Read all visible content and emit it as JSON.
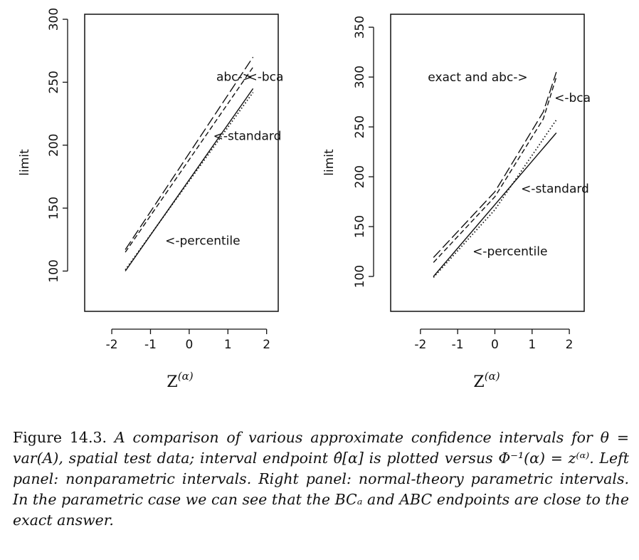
{
  "chart_data": [
    {
      "type": "line",
      "panel": "left",
      "xlabel": "Z",
      "xlabel_superscript": "(α)",
      "ylabel": "limit",
      "xlim": [
        -2.7,
        2.3
      ],
      "ylim": [
        68,
        304
      ],
      "xticks": [
        -2,
        -1,
        0,
        1,
        2
      ],
      "yticks": [
        100,
        150,
        200,
        250,
        300
      ],
      "series": [
        {
          "key": "abc",
          "style": "longdash",
          "x": [
            -1.65,
            1.65
          ],
          "y": [
            117,
            270
          ]
        },
        {
          "key": "bca",
          "style": "shortdash",
          "x": [
            -1.65,
            1.65
          ],
          "y": [
            115,
            262
          ]
        },
        {
          "key": "standard",
          "style": "solid",
          "x": [
            -1.65,
            1.65
          ],
          "y": [
            100,
            245
          ]
        },
        {
          "key": "percentile",
          "style": "dotted",
          "x": [
            -1.65,
            1.65
          ],
          "y": [
            101,
            242
          ]
        }
      ],
      "annotations": [
        {
          "text": "abc->",
          "x": 0.7,
          "y": 251
        },
        {
          "text": "<-bca",
          "x": 1.5,
          "y": 251
        },
        {
          "text": "<-standard",
          "x": 0.62,
          "y": 204
        },
        {
          "text": "<-percentile",
          "x": -0.62,
          "y": 121
        }
      ]
    },
    {
      "type": "line",
      "panel": "right",
      "xlabel": "Z",
      "xlabel_superscript": "(α)",
      "ylabel": "limit",
      "xlim": [
        -2.8,
        2.4
      ],
      "ylim": [
        65,
        363
      ],
      "xticks": [
        -2,
        -1,
        0,
        1,
        2
      ],
      "yticks": [
        100,
        150,
        200,
        250,
        300,
        350
      ],
      "series": [
        {
          "key": "exact",
          "style": "longdash",
          "x": [
            -1.65,
            0,
            1.3,
            1.65
          ],
          "y": [
            119,
            185,
            265,
            305
          ]
        },
        {
          "key": "abc",
          "style": "shortdash",
          "x": [
            -1.65,
            0,
            1.3,
            1.65
          ],
          "y": [
            114,
            180,
            258,
            300
          ]
        },
        {
          "key": "standard",
          "style": "solid",
          "x": [
            -1.65,
            1.65
          ],
          "y": [
            100,
            244
          ]
        },
        {
          "key": "percentile",
          "style": "dotted",
          "x": [
            -1.65,
            0,
            1.65
          ],
          "y": [
            99,
            167,
            257
          ]
        }
      ],
      "annotations": [
        {
          "text": "exact and abc->",
          "x": -1.8,
          "y": 296
        },
        {
          "text": "<-bca",
          "x": 1.6,
          "y": 275
        },
        {
          "text": "<-standard",
          "x": 0.7,
          "y": 184
        },
        {
          "text": "<-percentile",
          "x": -0.6,
          "y": 121
        }
      ]
    }
  ],
  "caption": {
    "lead": "Figure 14.3.",
    "text": "A comparison of various approximate confidence intervals for θ = var(A), spatial test data; interval endpoint θ̂[α] is plotted versus Φ⁻¹(α) = z⁽ᵅ⁾. Left panel: nonparametric intervals. Right panel: normal-theory parametric intervals. In the parametric case we can see that the BCₐ and ABC endpoints are close to the exact answer."
  }
}
